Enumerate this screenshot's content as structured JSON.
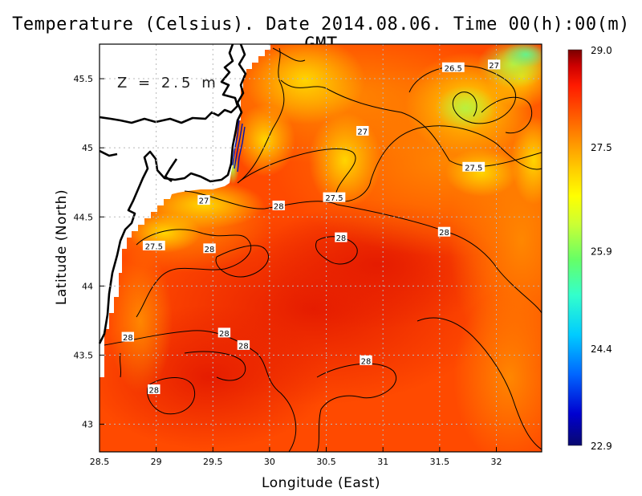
{
  "chart_data": {
    "type": "heatmap",
    "title": "Temperature (Celsius). Date 2014.08.06. Time 00(h):00(m) GMT",
    "annotation": "Z = 2.5 m",
    "xlabel": "Longitude (East)",
    "ylabel": "Latitude (North)",
    "xlim": [
      28.5,
      32.4
    ],
    "ylim": [
      42.8,
      45.75
    ],
    "x_ticks": [
      "28.5",
      "29",
      "29.5",
      "30",
      "30.5",
      "31",
      "31.5",
      "32"
    ],
    "x_tick_values": [
      28.5,
      29,
      29.5,
      30,
      30.5,
      31,
      31.5,
      32
    ],
    "y_ticks": [
      "43",
      "43.5",
      "44",
      "44.5",
      "45",
      "45.5"
    ],
    "y_tick_values": [
      43,
      43.5,
      44,
      44.5,
      45,
      45.5
    ],
    "grid": true,
    "colorbar": {
      "min": 22.9,
      "max": 29.0,
      "labels": [
        "29.0",
        "27.5",
        "25.9",
        "24.4",
        "22.9"
      ],
      "label_values": [
        29.0,
        27.5,
        25.9,
        24.4,
        22.9
      ],
      "colors": [
        "#08086e",
        "#0000d0",
        "#0066ff",
        "#00ccff",
        "#33ffcc",
        "#66ff66",
        "#ccff33",
        "#ffff00",
        "#ffcc00",
        "#ff9900",
        "#ff5500",
        "#ff1a00",
        "#cc0000",
        "#7a0000"
      ]
    },
    "contour_labels": [
      {
        "text": "26.5",
        "x": 31.62,
        "y": 45.58
      },
      {
        "text": "27",
        "x": 31.98,
        "y": 45.6
      },
      {
        "text": "27",
        "x": 30.82,
        "y": 45.12
      },
      {
        "text": "27.5",
        "x": 31.8,
        "y": 44.86
      },
      {
        "text": "27",
        "x": 29.42,
        "y": 44.62
      },
      {
        "text": "28",
        "x": 30.08,
        "y": 44.58
      },
      {
        "text": "27.5",
        "x": 30.57,
        "y": 44.64
      },
      {
        "text": "28",
        "x": 31.54,
        "y": 44.39
      },
      {
        "text": "27.5",
        "x": 28.98,
        "y": 44.29
      },
      {
        "text": "28",
        "x": 29.47,
        "y": 44.27
      },
      {
        "text": "28",
        "x": 30.63,
        "y": 44.35
      },
      {
        "text": "28",
        "x": 28.75,
        "y": 43.63
      },
      {
        "text": "28",
        "x": 29.6,
        "y": 43.66
      },
      {
        "text": "28",
        "x": 29.77,
        "y": 43.57
      },
      {
        "text": "28",
        "x": 30.85,
        "y": 43.46
      },
      {
        "text": "28",
        "x": 28.98,
        "y": 43.25
      }
    ]
  }
}
